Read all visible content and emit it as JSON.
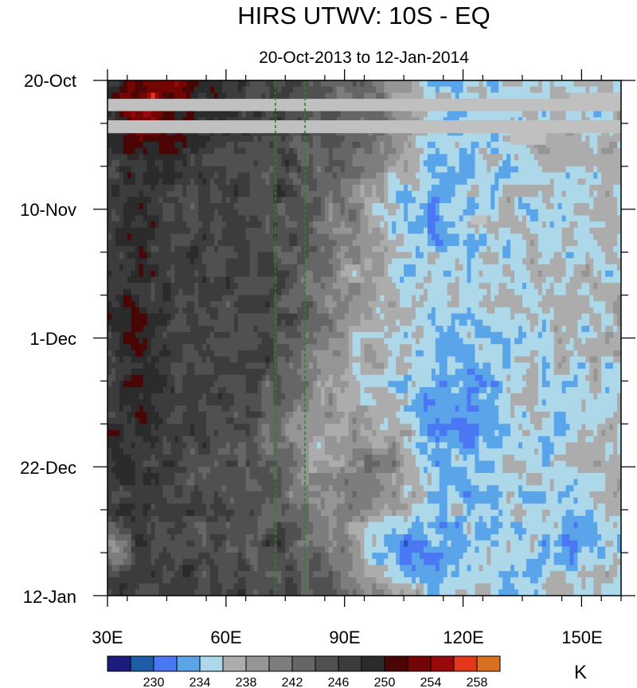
{
  "chart_data": {
    "type": "heatmap",
    "title": "HIRS UTWV: 10S - EQ",
    "subtitle": "20-Oct-2013 to 12-Jan-2014",
    "x_axis": {
      "range": [
        30,
        160
      ],
      "ticks": [
        30,
        60,
        90,
        120,
        150
      ],
      "tick_labels": [
        "30E",
        "60E",
        "90E",
        "120E",
        "150E"
      ]
    },
    "y_axis": {
      "range": [
        "2013-10-20",
        "2014-01-12"
      ],
      "ticks": [
        "2013-10-20",
        "2013-11-10",
        "2013-12-01",
        "2013-12-22",
        "2014-01-12"
      ],
      "tick_labels": [
        "20-Oct",
        "10-Nov",
        "1-Dec",
        "22-Dec",
        "12-Jan"
      ]
    },
    "reference_lines": [
      {
        "x": 72.5,
        "style": "dashed",
        "color": "#228B22"
      },
      {
        "x": 80,
        "style": "dashed",
        "color": "#228B22"
      }
    ],
    "missing_color": "#c0c0c0",
    "colorbar": {
      "unit": "K",
      "levels": [
        230,
        232,
        234,
        236,
        238,
        240,
        242,
        244,
        246,
        248,
        250,
        252,
        254,
        256,
        258
      ],
      "labels": [
        "230",
        "234",
        "238",
        "242",
        "246",
        "250",
        "254",
        "258"
      ],
      "colors": [
        "#1c1c7c",
        "#1d5da8",
        "#4a78f5",
        "#5aa5ea",
        "#acd8ea",
        "#acacac",
        "#959595",
        "#7d7d7d",
        "#666666",
        "#505050",
        "#3c3c3c",
        "#2b2b2b",
        "#4a0505",
        "#740505",
        "#980a0a",
        "#e4361a",
        "#d8701f"
      ]
    }
  }
}
